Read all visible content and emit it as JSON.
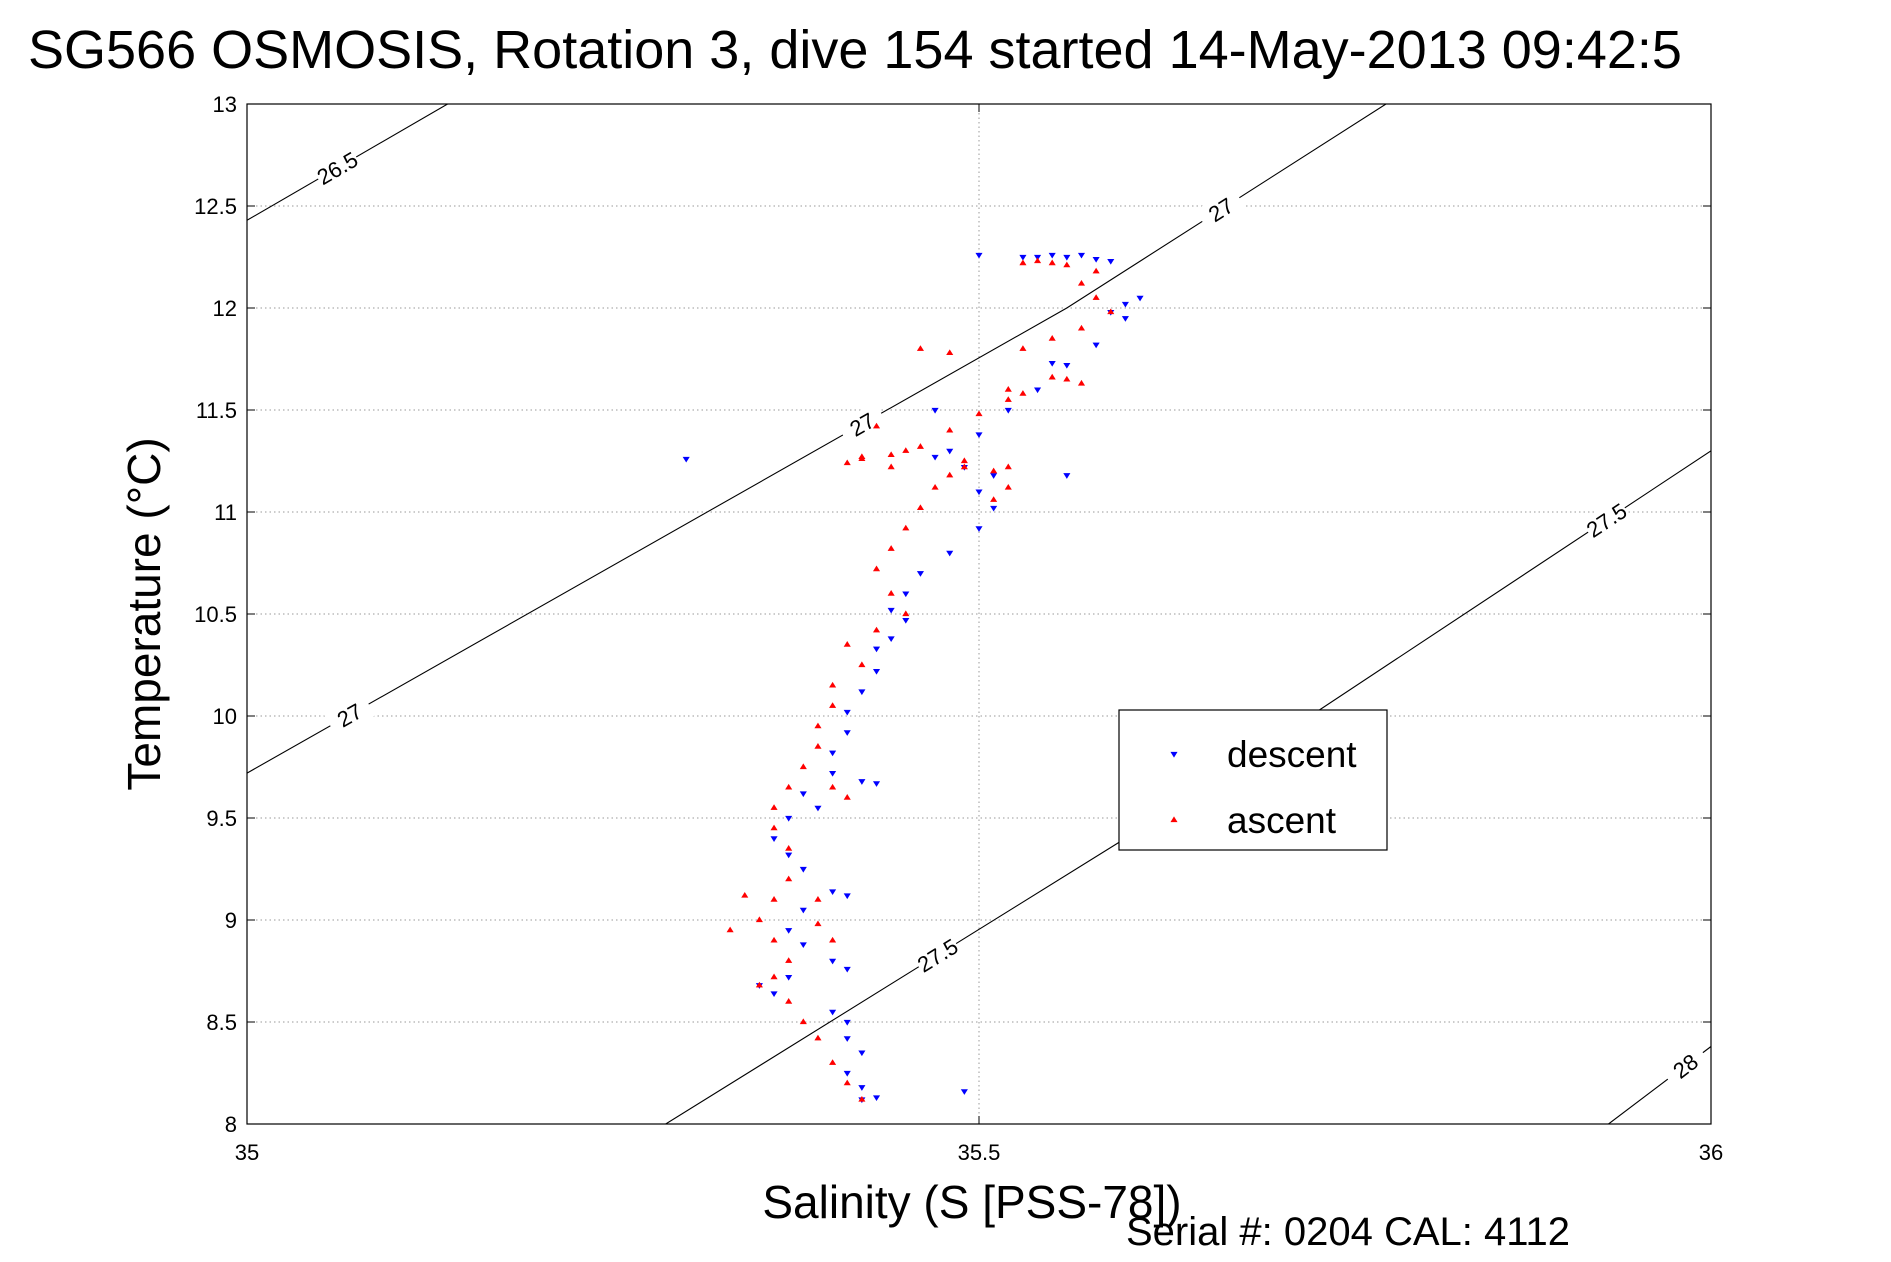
{
  "chart_data": {
    "type": "scatter",
    "title": "SG566 OSMOSIS, Rotation 3, dive 154 started 14-May-2013 09:42:5",
    "xlabel": "Salinity (S [PSS-78])",
    "ylabel": "Temperature (°C)",
    "xlim": [
      35,
      36
    ],
    "ylim": [
      8,
      13
    ],
    "x_ticks": [
      "35",
      "35.5",
      "36"
    ],
    "y_ticks": [
      "8",
      "8.5",
      "9",
      "9.5",
      "10",
      "10.5",
      "11",
      "11.5",
      "12",
      "12.5",
      "13"
    ],
    "grid": true,
    "legend_position": "right-center",
    "footer": "Serial #: 0204  CAL: 4112",
    "contours": [
      {
        "label": "26.5",
        "label_texts": [
          "26.5"
        ],
        "points": [
          [
            35.0,
            12.43
          ],
          [
            35.137,
            13.0
          ]
        ]
      },
      {
        "label": "27",
        "label_texts": [
          "27",
          "27",
          "27"
        ],
        "points": [
          [
            35.0,
            9.72
          ],
          [
            35.56,
            12.0
          ],
          [
            35.778,
            13.0
          ]
        ]
      },
      {
        "label": "27.5",
        "label_texts": [
          "27.5",
          "27.5"
        ],
        "points": [
          [
            35.286,
            8.0
          ],
          [
            35.6,
            9.4
          ],
          [
            36.0,
            11.3
          ]
        ]
      },
      {
        "label": "28",
        "label_texts": [
          "28"
        ],
        "points": [
          [
            35.93,
            8.0
          ],
          [
            36.0,
            8.38
          ]
        ]
      }
    ],
    "series": [
      {
        "name": "descent",
        "color": "#0000ff",
        "marker": "triangle-down",
        "points": [
          [
            35.5,
            12.26
          ],
          [
            35.53,
            12.25
          ],
          [
            35.54,
            12.25
          ],
          [
            35.55,
            12.26
          ],
          [
            35.56,
            12.25
          ],
          [
            35.57,
            12.26
          ],
          [
            35.58,
            12.24
          ],
          [
            35.59,
            12.23
          ],
          [
            35.61,
            12.05
          ],
          [
            35.6,
            12.02
          ],
          [
            35.59,
            11.98
          ],
          [
            35.6,
            11.95
          ],
          [
            35.58,
            11.82
          ],
          [
            35.56,
            11.72
          ],
          [
            35.54,
            11.6
          ],
          [
            35.52,
            11.5
          ],
          [
            35.5,
            11.38
          ],
          [
            35.48,
            11.3
          ],
          [
            35.47,
            11.27
          ],
          [
            35.49,
            11.22
          ],
          [
            35.51,
            11.18
          ],
          [
            35.5,
            11.1
          ],
          [
            35.51,
            11.02
          ],
          [
            35.5,
            10.92
          ],
          [
            35.48,
            10.8
          ],
          [
            35.46,
            10.7
          ],
          [
            35.45,
            10.6
          ],
          [
            35.44,
            10.52
          ],
          [
            35.45,
            10.47
          ],
          [
            35.44,
            10.38
          ],
          [
            35.43,
            10.33
          ],
          [
            35.43,
            10.22
          ],
          [
            35.42,
            10.12
          ],
          [
            35.41,
            10.02
          ],
          [
            35.41,
            9.92
          ],
          [
            35.4,
            9.82
          ],
          [
            35.4,
            9.72
          ],
          [
            35.42,
            9.68
          ],
          [
            35.43,
            9.67
          ],
          [
            35.38,
            9.62
          ],
          [
            35.39,
            9.55
          ],
          [
            35.37,
            9.5
          ],
          [
            35.36,
            9.4
          ],
          [
            35.37,
            9.32
          ],
          [
            35.38,
            9.25
          ],
          [
            35.4,
            9.14
          ],
          [
            35.41,
            9.12
          ],
          [
            35.38,
            9.05
          ],
          [
            35.37,
            8.95
          ],
          [
            35.38,
            8.88
          ],
          [
            35.4,
            8.8
          ],
          [
            35.41,
            8.76
          ],
          [
            35.37,
            8.72
          ],
          [
            35.35,
            8.68
          ],
          [
            35.36,
            8.64
          ],
          [
            35.4,
            8.55
          ],
          [
            35.41,
            8.5
          ],
          [
            35.41,
            8.42
          ],
          [
            35.42,
            8.35
          ],
          [
            35.41,
            8.25
          ],
          [
            35.42,
            8.18
          ],
          [
            35.42,
            8.12
          ],
          [
            35.43,
            8.13
          ],
          [
            35.49,
            8.16
          ],
          [
            35.56,
            11.18
          ],
          [
            35.3,
            11.26
          ],
          [
            35.47,
            11.5
          ],
          [
            35.55,
            11.73
          ]
        ]
      },
      {
        "name": "ascent",
        "color": "#ff0000",
        "marker": "triangle-up",
        "points": [
          [
            35.53,
            12.22
          ],
          [
            35.54,
            12.23
          ],
          [
            35.55,
            12.22
          ],
          [
            35.56,
            12.21
          ],
          [
            35.58,
            12.18
          ],
          [
            35.57,
            12.12
          ],
          [
            35.58,
            12.05
          ],
          [
            35.59,
            11.98
          ],
          [
            35.57,
            11.9
          ],
          [
            35.55,
            11.85
          ],
          [
            35.53,
            11.8
          ],
          [
            35.55,
            11.66
          ],
          [
            35.56,
            11.65
          ],
          [
            35.57,
            11.63
          ],
          [
            35.52,
            11.55
          ],
          [
            35.5,
            11.48
          ],
          [
            35.48,
            11.4
          ],
          [
            35.46,
            11.32
          ],
          [
            35.44,
            11.28
          ],
          [
            35.42,
            11.26
          ],
          [
            35.41,
            11.24
          ],
          [
            35.42,
            11.27
          ],
          [
            35.44,
            11.22
          ],
          [
            35.48,
            11.18
          ],
          [
            35.47,
            11.12
          ],
          [
            35.49,
            11.22
          ],
          [
            35.51,
            11.2
          ],
          [
            35.52,
            11.22
          ],
          [
            35.52,
            11.12
          ],
          [
            35.51,
            11.06
          ],
          [
            35.46,
            11.02
          ],
          [
            35.45,
            10.92
          ],
          [
            35.44,
            10.82
          ],
          [
            35.43,
            10.72
          ],
          [
            35.44,
            10.6
          ],
          [
            35.45,
            10.5
          ],
          [
            35.43,
            10.42
          ],
          [
            35.41,
            10.35
          ],
          [
            35.42,
            10.25
          ],
          [
            35.4,
            10.15
          ],
          [
            35.4,
            10.05
          ],
          [
            35.39,
            9.95
          ],
          [
            35.39,
            9.85
          ],
          [
            35.38,
            9.75
          ],
          [
            35.37,
            9.65
          ],
          [
            35.36,
            9.55
          ],
          [
            35.36,
            9.45
          ],
          [
            35.37,
            9.35
          ],
          [
            35.37,
            9.2
          ],
          [
            35.36,
            9.1
          ],
          [
            35.35,
            9.0
          ],
          [
            35.36,
            8.9
          ],
          [
            35.37,
            8.8
          ],
          [
            35.36,
            8.72
          ],
          [
            35.35,
            8.68
          ],
          [
            35.37,
            8.6
          ],
          [
            35.38,
            8.5
          ],
          [
            35.39,
            8.42
          ],
          [
            35.4,
            8.3
          ],
          [
            35.41,
            8.2
          ],
          [
            35.42,
            8.12
          ],
          [
            35.33,
            8.95
          ],
          [
            35.34,
            9.12
          ],
          [
            35.39,
            8.98
          ],
          [
            35.4,
            8.9
          ],
          [
            35.39,
            9.1
          ],
          [
            35.4,
            9.65
          ],
          [
            35.41,
            9.6
          ],
          [
            35.46,
            11.8
          ],
          [
            35.48,
            11.78
          ],
          [
            35.52,
            11.6
          ],
          [
            35.53,
            11.58
          ],
          [
            35.43,
            11.42
          ],
          [
            35.45,
            11.3
          ],
          [
            35.49,
            11.25
          ]
        ]
      }
    ]
  }
}
